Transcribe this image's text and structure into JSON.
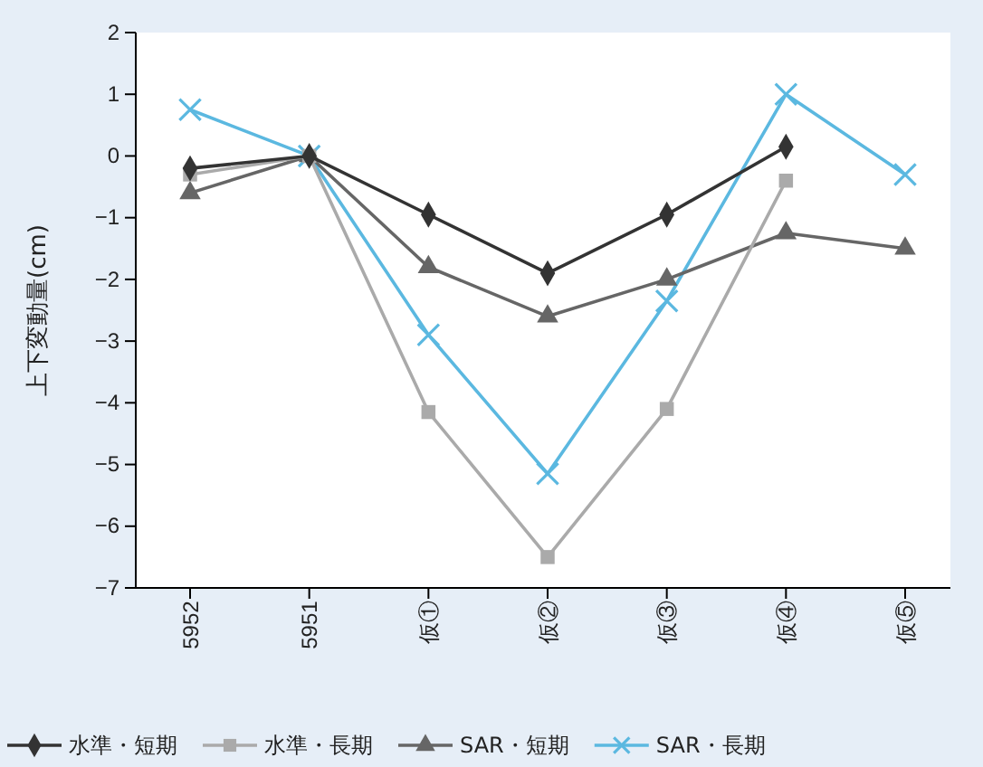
{
  "chart_data": {
    "type": "line",
    "ylabel": "上下変動量(cm)",
    "categories": [
      "5952",
      "5951",
      "仮①",
      "仮②",
      "仮③",
      "仮④",
      "仮⑤"
    ],
    "ylim": [
      -7,
      2
    ],
    "yticks": [
      -7,
      -6,
      -5,
      -4,
      -3,
      -2,
      -1,
      0,
      1,
      2
    ],
    "grid": false,
    "legend": "bottom",
    "series": [
      {
        "name": "水準・短期",
        "color": "#333333",
        "marker": "diamond",
        "values": [
          -0.2,
          0,
          -0.95,
          -1.9,
          -0.95,
          0.15,
          null
        ]
      },
      {
        "name": "水準・長期",
        "color": "#aaaaaa",
        "marker": "square",
        "values": [
          -0.3,
          0,
          -4.15,
          -6.5,
          -4.1,
          -0.4,
          null
        ]
      },
      {
        "name": "SAR・短期",
        "color": "#666666",
        "marker": "triangle",
        "values": [
          -0.6,
          0,
          -1.8,
          -2.6,
          -2.0,
          -1.25,
          -1.5
        ]
      },
      {
        "name": "SAR・長期",
        "color": "#5bb8e0",
        "marker": "cross",
        "values": [
          0.75,
          0,
          -2.9,
          -5.15,
          -2.35,
          1.0,
          -0.3
        ]
      }
    ]
  }
}
